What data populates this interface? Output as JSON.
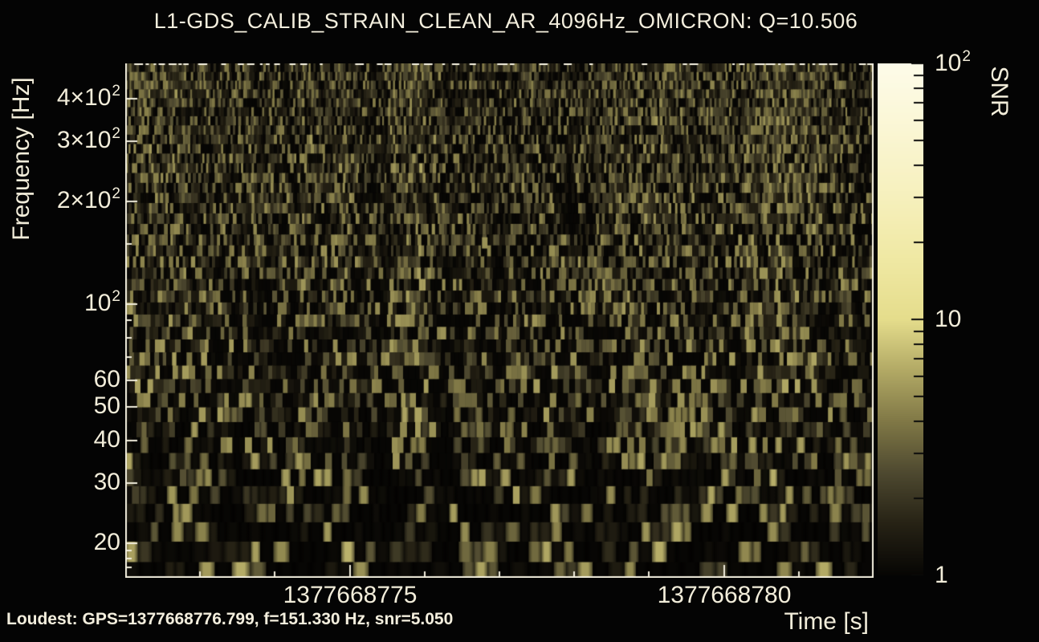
{
  "title": "L1-GDS_CALIB_STRAIN_CLEAN_AR_4096Hz_OMICRON: Q=10.506",
  "axes": {
    "ylabel": "Frequency [Hz]",
    "xlabel": "Time [s]",
    "x_range": [
      1377668772,
      1377668782
    ],
    "x_major_ticks": [
      {
        "value": 1377668775,
        "label": "1377668775"
      },
      {
        "value": 1377668780,
        "label": "1377668780"
      }
    ],
    "x_minor_step_s": 1,
    "y_range_hz": [
      15.85,
      507
    ],
    "y_major_ticks": [
      {
        "hz": 20,
        "label": "20"
      },
      {
        "hz": 30,
        "label": "30"
      },
      {
        "hz": 40,
        "label": "40"
      },
      {
        "hz": 50,
        "label": "50"
      },
      {
        "hz": 60,
        "label": "60"
      },
      {
        "hz": 100,
        "label": "10",
        "sup": "2"
      },
      {
        "hz": 200,
        "label": "2×10",
        "sup": "2"
      },
      {
        "hz": 300,
        "label": "3×10",
        "sup": "2"
      },
      {
        "hz": 400,
        "label": "4×10",
        "sup": "2"
      }
    ],
    "y_minor_ticks_hz": [
      17,
      18,
      19,
      70,
      80,
      90,
      150
    ]
  },
  "colorbar": {
    "label": "SNR",
    "range": [
      1,
      100
    ],
    "major_ticks": [
      {
        "value": 100,
        "label": "10",
        "sup": "2"
      },
      {
        "value": 10,
        "label": "10"
      },
      {
        "value": 1,
        "label": "1"
      }
    ],
    "minor_ticks": [
      2,
      3,
      4,
      5,
      6,
      7,
      8,
      9,
      20,
      30,
      40,
      50,
      60,
      70,
      80,
      90
    ]
  },
  "footer": {
    "loudest": "Loudest: GPS=1377668776.799, f=151.330 Hz, snr=5.050"
  },
  "colors": {
    "background": "#040404",
    "text": "#f2edda",
    "frame": "#f2eedd",
    "colorbar_tick": "#0a0a0a",
    "colormap": [
      {
        "t": 0.0,
        "c": "#070604"
      },
      {
        "t": 0.1,
        "c": "#262215"
      },
      {
        "t": 0.2,
        "c": "#4e4930"
      },
      {
        "t": 0.3,
        "c": "#807846"
      },
      {
        "t": 0.4,
        "c": "#b2a965"
      },
      {
        "t": 0.5,
        "c": "#e5dd8c"
      },
      {
        "t": 0.62,
        "c": "#f0e9a4"
      },
      {
        "t": 0.75,
        "c": "#f7f1bf"
      },
      {
        "t": 0.88,
        "c": "#fbf7d6"
      },
      {
        "t": 1.0,
        "c": "#fefce9"
      }
    ]
  },
  "chart_data": {
    "type": "heatmap",
    "subtype": "omicron-q-scan-spectrogram",
    "title": "L1-GDS_CALIB_STRAIN_CLEAN_AR_4096Hz_OMICRON: Q=10.506",
    "q_value": 10.506,
    "xlabel": "Time [s]",
    "ylabel": "Frequency [Hz]",
    "colorbar_label": "SNR",
    "x_scale": "linear",
    "y_scale": "log",
    "color_scale": "log",
    "x_range_gps": [
      1377668772,
      1377668782
    ],
    "y_range_hz": [
      16,
      512
    ],
    "snr_range": [
      1,
      100
    ],
    "x_tick_labels": [
      "1377668775",
      "1377668780"
    ],
    "y_tick_labels": [
      "20",
      "30",
      "40",
      "50",
      "60",
      "10²",
      "2×10²",
      "3×10²",
      "4×10²"
    ],
    "colorbar_tick_labels": [
      "1",
      "10",
      "10²"
    ],
    "loudest": {
      "gps": 1377668776.799,
      "frequency_hz": 151.33,
      "snr": 5.05
    }
  }
}
